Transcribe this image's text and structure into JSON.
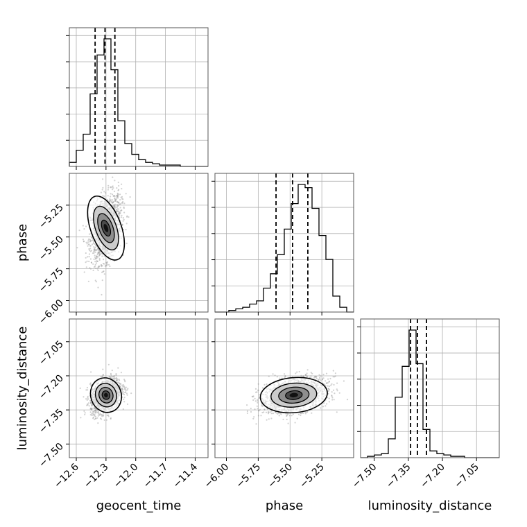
{
  "chart_data": {
    "type": "corner",
    "parameters": [
      "geocent_time",
      "phase",
      "luminosity_distance"
    ],
    "axis_labels": {
      "geocent_time": "geocent_time",
      "phase": "phase",
      "luminosity_distance": "luminosity_distance"
    },
    "ranges": {
      "geocent_time": [
        -12.67,
        -11.27
      ],
      "phase": [
        -6.09,
        -5.0
      ],
      "luminosity_distance": [
        -7.56,
        -6.95
      ]
    },
    "ticks": {
      "geocent_time": [
        -12.6,
        -12.3,
        -12.0,
        -11.7,
        -11.4
      ],
      "phase": [
        -6.0,
        -5.75,
        -5.5,
        -5.25
      ],
      "luminosity_distance": [
        -7.5,
        -7.35,
        -7.2,
        -7.05
      ]
    },
    "tick_labels": {
      "geocent_time": [
        "−12.6",
        "−12.3",
        "−12.0",
        "−11.7",
        "−11.4"
      ],
      "phase": [
        "−6.00",
        "−5.75",
        "−5.50",
        "−5.25"
      ],
      "luminosity_distance": [
        "−7.50",
        "−7.35",
        "−7.20",
        "−7.05"
      ]
    },
    "quantiles": {
      "geocent_time": [
        -12.41,
        -12.31,
        -12.21
      ],
      "phase": [
        -5.61,
        -5.48,
        -5.36
      ],
      "luminosity_distance": [
        -7.34,
        -7.31,
        -7.27
      ]
    },
    "histograms": {
      "geocent_time": {
        "range": [
          -12.67,
          -11.27
        ],
        "counts": [
          3,
          12,
          24,
          54,
          83,
          95,
          72,
          34,
          17,
          9,
          5,
          3,
          2,
          1,
          1,
          1,
          0,
          0,
          0,
          0
        ]
      },
      "phase": {
        "range": [
          -6.09,
          -5.0
        ],
        "counts": [
          0,
          0,
          1,
          2,
          3,
          5,
          7,
          15,
          24,
          36,
          52,
          68,
          80,
          78,
          65,
          48,
          33,
          10,
          3,
          0
        ]
      },
      "luminosity_distance": {
        "range": [
          -7.56,
          -6.95
        ],
        "counts": [
          0,
          1,
          2,
          3,
          14,
          45,
          68,
          95,
          70,
          21,
          5,
          3,
          2,
          1,
          1,
          0,
          0,
          0,
          0,
          0
        ]
      }
    },
    "peaks_2d": {
      "phase_vs_geocent_time": {
        "x": -12.3,
        "y": -5.43,
        "sx": 0.07,
        "sy": 0.12
      },
      "luminosity_distance_vs_geocent_time": {
        "x": -12.3,
        "y": -7.285,
        "sx": 0.07,
        "sy": 0.035
      },
      "luminosity_distance_vs_phase": {
        "x": -5.47,
        "y": -7.285,
        "sx": 0.12,
        "sy": 0.035
      }
    },
    "grid": true,
    "x_tick_rotation": 45,
    "y_tick_rotation": 45
  }
}
